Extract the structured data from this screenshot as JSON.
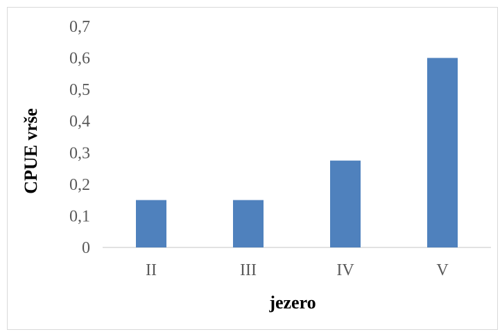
{
  "chart_data": {
    "type": "bar",
    "categories": [
      "II",
      "III",
      "IV",
      "V"
    ],
    "values": [
      0.15,
      0.15,
      0.275,
      0.6
    ],
    "xlabel": "jezero",
    "ylabel": "CPUE vrše",
    "ylim": [
      0,
      0.7
    ],
    "yticks": [
      "0",
      "0,1",
      "0,2",
      "0,3",
      "0,4",
      "0,5",
      "0,6",
      "0,7"
    ],
    "grid": false,
    "legend": "none",
    "bar_color": "#4f81bd"
  }
}
